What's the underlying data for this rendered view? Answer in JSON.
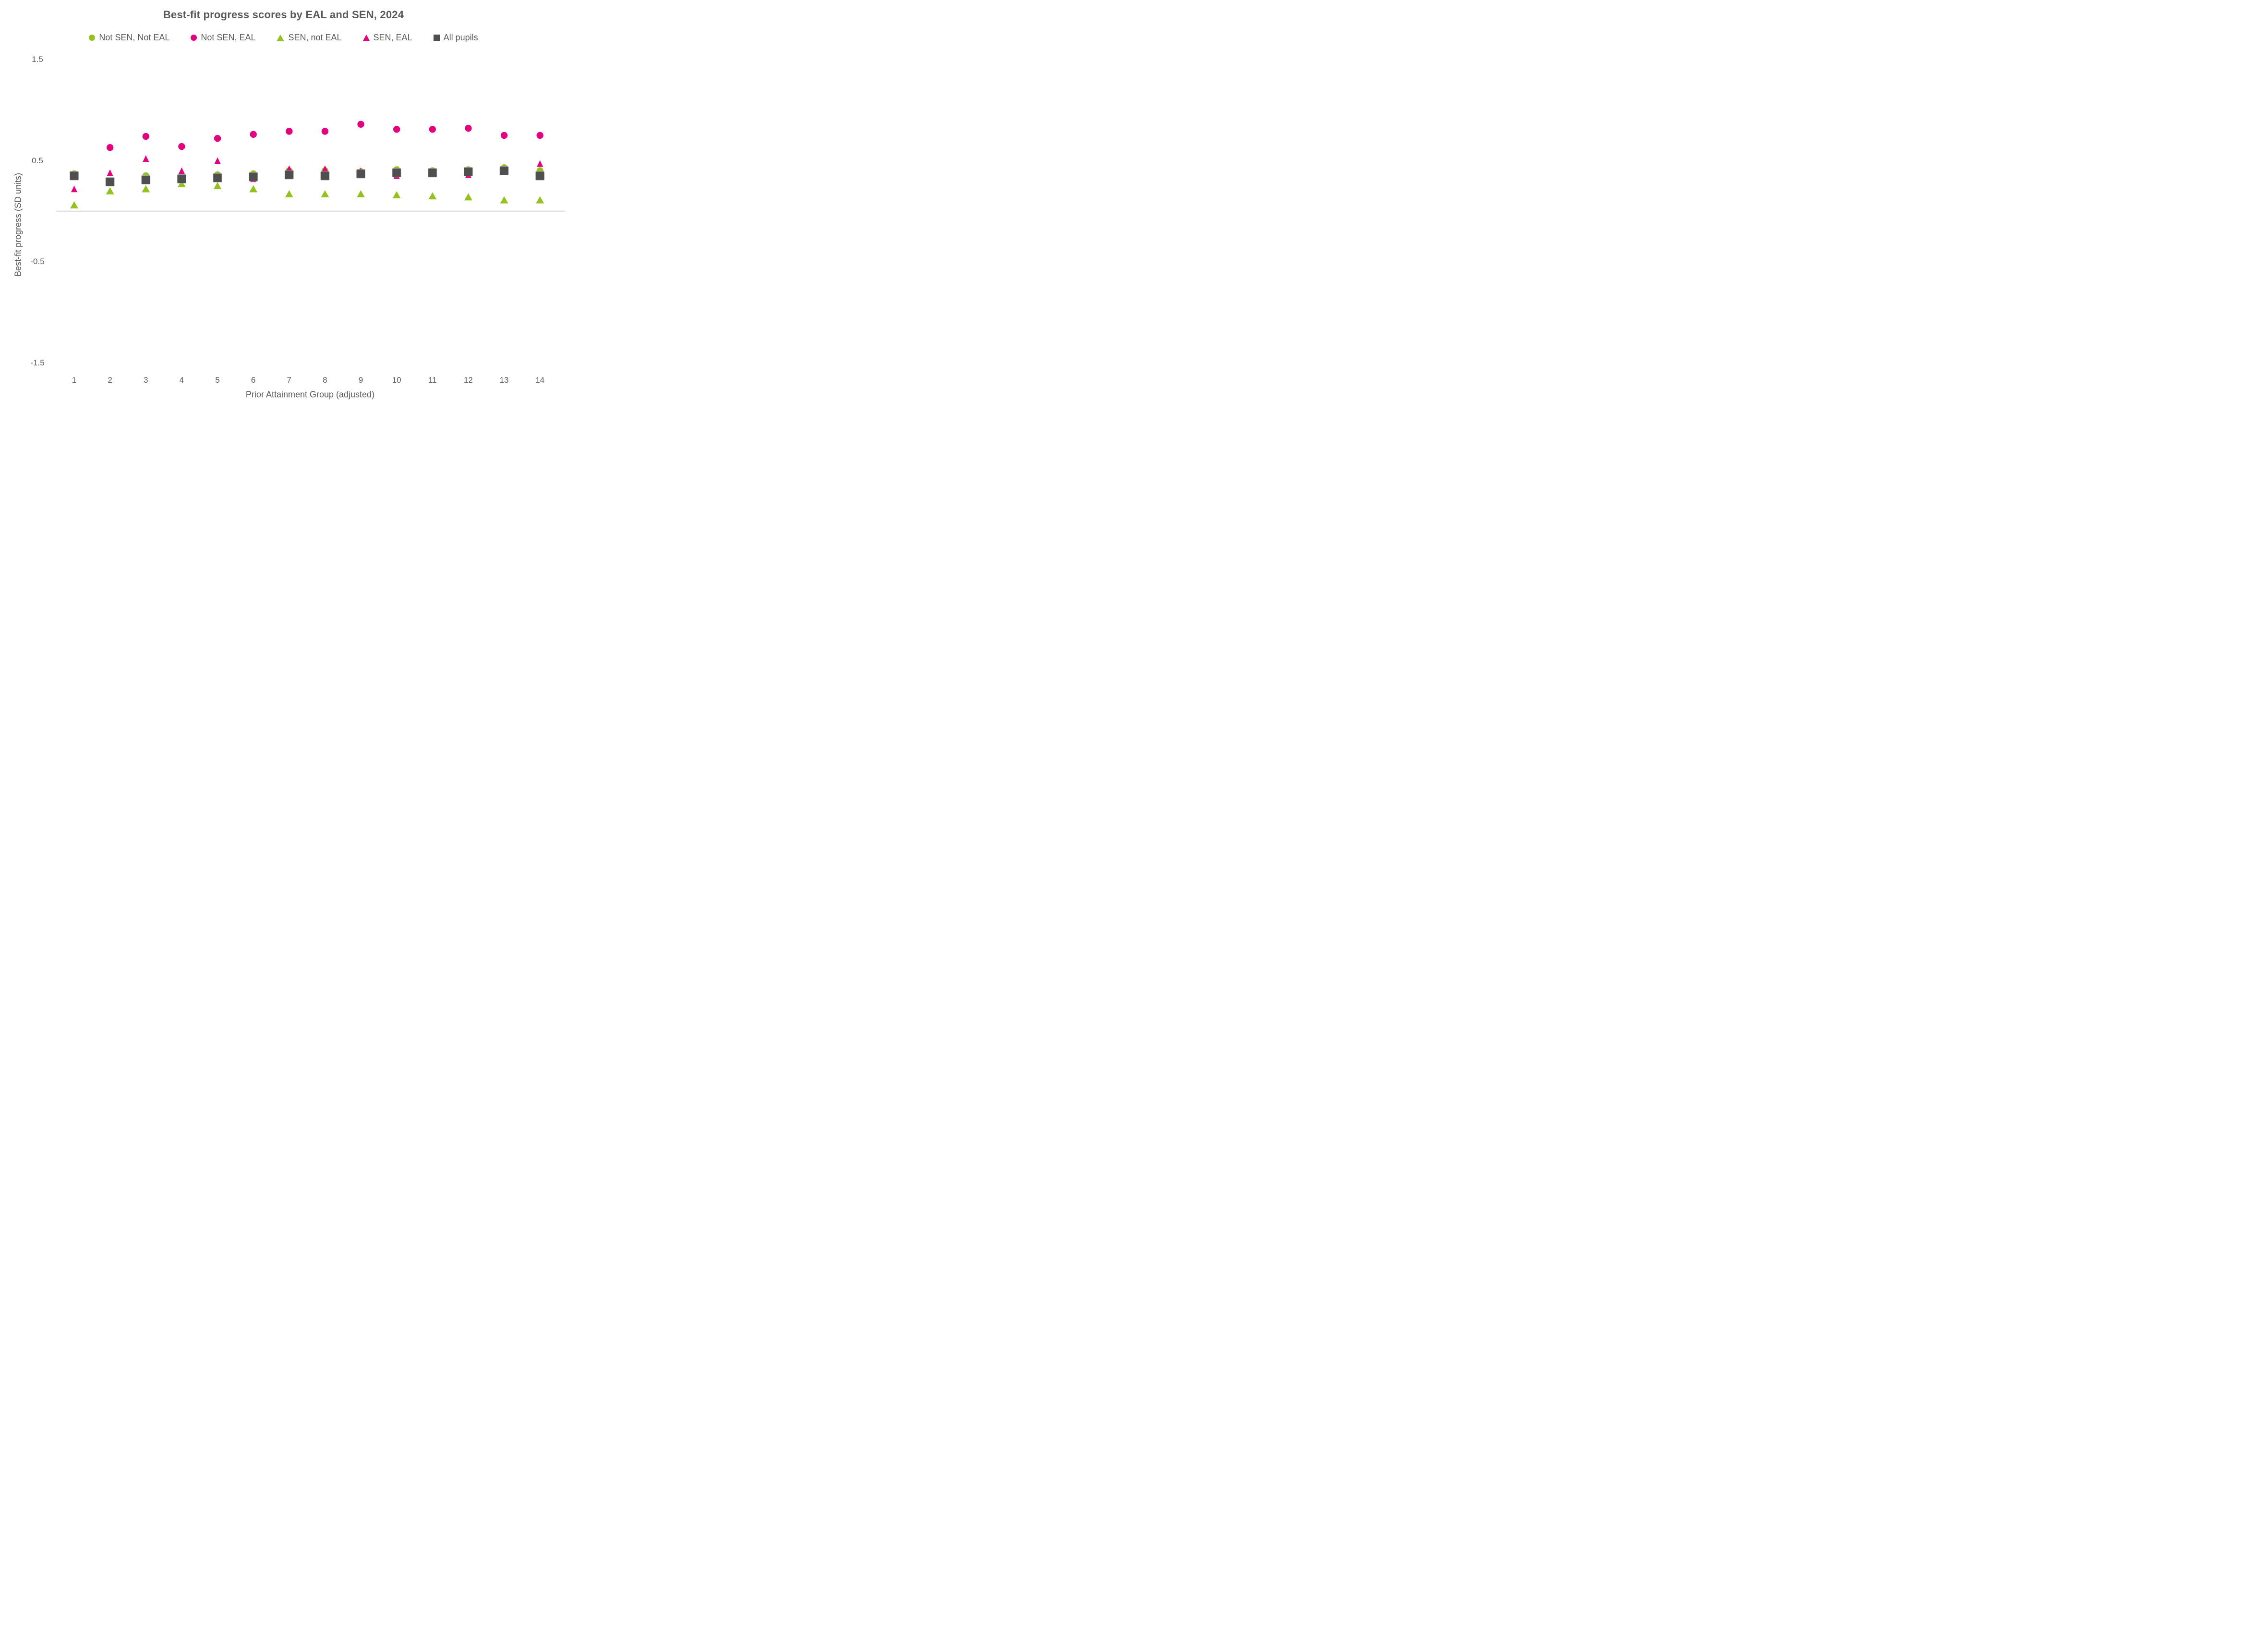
{
  "title": "Best-fit progress scores by EAL and SEN, 2024",
  "colors": {
    "green": "#95c11f",
    "pink": "#e5007d",
    "dark_gray": "#4f4f4f",
    "square_border": "#a0a0a0",
    "text_gray": "#595959",
    "zero_line": "#d9d9d9",
    "background": "#ffffff"
  },
  "chart_data": {
    "type": "scatter",
    "title": "Best-fit progress scores by EAL and SEN, 2024",
    "xlabel": "Prior Attainment Group (adjusted)",
    "ylabel": "Best-fit progress (SD units)",
    "legend_position": "top",
    "grid": "zero-line-only",
    "x": [
      1,
      2,
      3,
      4,
      5,
      6,
      7,
      8,
      9,
      10,
      11,
      12,
      13,
      14
    ],
    "x_tick_labels": [
      "1",
      "2",
      "3",
      "4",
      "5",
      "6",
      "7",
      "8",
      "9",
      "10",
      "11",
      "12",
      "13",
      "14"
    ],
    "y_ticks": [
      1.5,
      0.5,
      -0.5,
      -1.5
    ],
    "y_tick_labels": [
      "1.5",
      "0.5",
      "-0.5",
      "-1.5"
    ],
    "ylim": [
      -1.75,
      1.75
    ],
    "series": [
      {
        "name": "Not SEN, Not EAL",
        "marker": "circle",
        "color": "#95c11f",
        "values": [
          0.37,
          0.3,
          0.35,
          0.33,
          0.36,
          0.37,
          0.4,
          0.4,
          0.39,
          0.41,
          0.4,
          0.41,
          0.43,
          0.4
        ]
      },
      {
        "name": "Not SEN, EAL",
        "marker": "circle",
        "color": "#e5007d",
        "values": [
          0.35,
          0.63,
          0.74,
          0.64,
          0.72,
          0.76,
          0.79,
          0.79,
          0.86,
          0.81,
          0.81,
          0.82,
          0.75,
          0.75
        ]
      },
      {
        "name": "SEN, not EAL",
        "marker": "triangle",
        "color": "#95c11f",
        "values": [
          0.06,
          0.2,
          0.22,
          0.27,
          0.25,
          0.22,
          0.17,
          0.17,
          0.17,
          0.16,
          0.15,
          0.14,
          0.11,
          0.11
        ]
      },
      {
        "name": "SEN, EAL",
        "marker": "triangle",
        "color": "#e5007d",
        "values": [
          0.22,
          0.38,
          0.52,
          0.4,
          0.5,
          0.32,
          0.42,
          0.42,
          0.4,
          0.35,
          0.38,
          0.36,
          0.4,
          0.47
        ]
      },
      {
        "name": "All pupils",
        "marker": "square",
        "color": "#4f4f4f",
        "values": [
          0.35,
          0.29,
          0.31,
          0.32,
          0.33,
          0.34,
          0.36,
          0.35,
          0.37,
          0.38,
          0.38,
          0.39,
          0.4,
          0.35
        ]
      }
    ]
  }
}
